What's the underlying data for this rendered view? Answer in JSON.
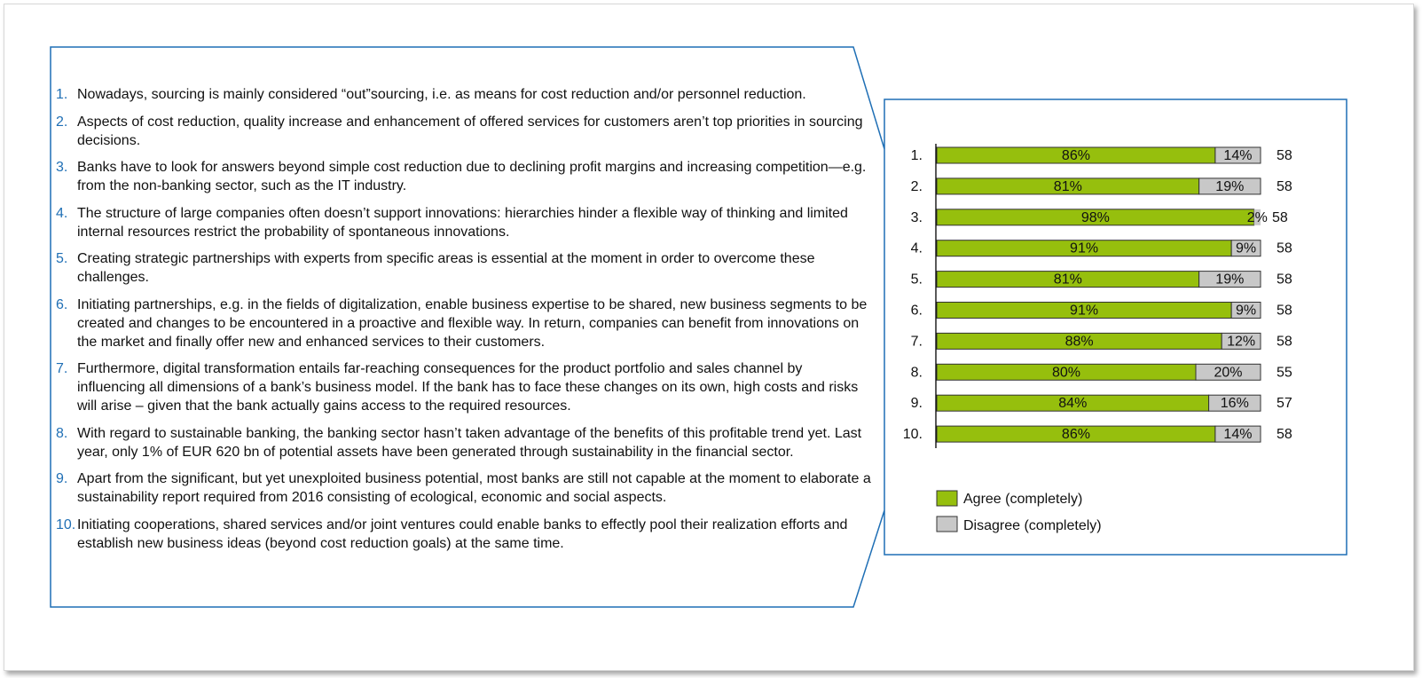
{
  "colors": {
    "frame": "#1f6fb5",
    "agree": "#96bf0d",
    "disagree": "#c8c8c8",
    "number": "#1f6fb5",
    "text": "#111111"
  },
  "statements": [
    {
      "num": "1.",
      "text": "Nowadays, sourcing is mainly considered “out”sourcing, i.e. as means for cost reduction and/or personnel reduction."
    },
    {
      "num": "2.",
      "text": "Aspects of cost reduction, quality increase and enhancement of offered services for customers aren’t top priorities in sourcing decisions."
    },
    {
      "num": "3.",
      "text": "Banks have  to look for answers beyond simple cost reduction due to declining profit margins and increasing competition—e.g. from the non-banking sector, such as the IT industry."
    },
    {
      "num": "4.",
      "text": "The structure of large companies often doesn’t support innovations: hierarchies hinder a flexible way of thinking and limited internal resources restrict the probability of spontaneous innovations."
    },
    {
      "num": "5.",
      "text": "Creating strategic partnerships with experts from specific areas is essential at the moment in order to overcome these challenges."
    },
    {
      "num": "6.",
      "text": "Initiating partnerships, e.g. in the fields of digitalization, enable business expertise to be shared, new business segments to be created and changes to be encountered in a proactive and flexible way. In return, companies can benefit from innovations on the market and finally offer new and enhanced services to their customers."
    },
    {
      "num": "7.",
      "text": "Furthermore, digital transformation entails far-reaching consequences for the product portfolio and sales channel by influencing all dimensions of a bank’s business model. If the bank has to face these changes on its own, high costs and risks will arise – given that the bank actually gains access to the required resources."
    },
    {
      "num": "8.",
      "text": "With regard to sustainable banking, the banking sector hasn’t taken advantage of the benefits of this profitable trend yet. Last year, only 1% of EUR 620 bn of potential assets have been generated through sustainability in the financial sector."
    },
    {
      "num": "9.",
      "text": "Apart from the significant, but yet unexploited business potential, most banks are still not capable at the moment to elaborate a sustainability report required from 2016 consisting of ecological, economic and social aspects."
    },
    {
      "num": "10.",
      "text": "Initiating cooperations, shared services and/or joint ventures could enable banks to effectly pool their realization efforts and establish new business ideas (beyond cost reduction goals) at the same time."
    }
  ],
  "chart_data": {
    "type": "bar",
    "orientation": "horizontal",
    "stacked": true,
    "categories": [
      "1.",
      "2.",
      "3.",
      "4.",
      "5.",
      "6.",
      "7.",
      "8.",
      "9.",
      "10."
    ],
    "series": [
      {
        "name": "Agree (completely)",
        "values": [
          86,
          81,
          98,
          91,
          81,
          91,
          88,
          80,
          84,
          86
        ],
        "labels": [
          "86%",
          "81%",
          "98%",
          "91%",
          "81%",
          "91%",
          "88%",
          "80%",
          "84%",
          "86%"
        ]
      },
      {
        "name": "Disagree (completely)",
        "values": [
          14,
          19,
          2,
          9,
          19,
          9,
          12,
          20,
          16,
          14
        ],
        "labels": [
          "14%",
          "19%",
          "2%",
          "9%",
          "19%",
          "9%",
          "12%",
          "20%",
          "16%",
          "14%"
        ]
      }
    ],
    "n_values": [
      58,
      58,
      58,
      58,
      58,
      58,
      58,
      55,
      57,
      58
    ],
    "n_labels": [
      "58",
      "58",
      "58",
      "58",
      "58",
      "58",
      "58",
      "55",
      "57",
      "58"
    ],
    "xlim": [
      0,
      100
    ],
    "legend_position": "bottom-left",
    "grid": false
  }
}
